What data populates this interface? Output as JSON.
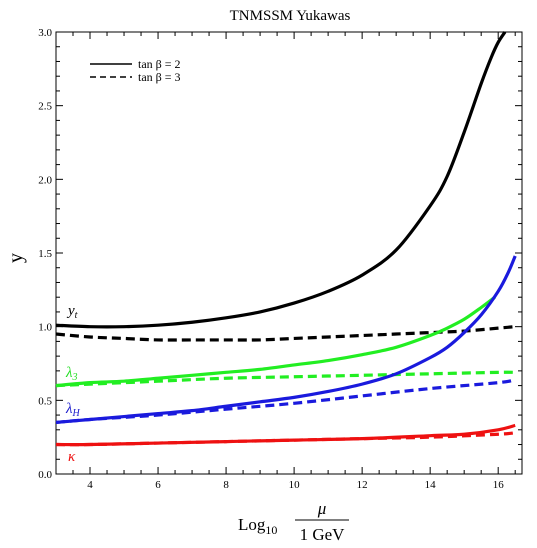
{
  "chart_data": {
    "type": "line",
    "title": "TNMSSM Yukawas",
    "ylabel": "y",
    "xlabel": {
      "prefix": "Log",
      "prefix_sub": "10",
      "numerator": "μ",
      "denominator": "1 GeV"
    },
    "xlim": [
      3,
      16.7
    ],
    "ylim": [
      0,
      3.0
    ],
    "xticks": [
      "4",
      "6",
      "8",
      "10",
      "12",
      "14",
      "16"
    ],
    "yticks": [
      "0.0",
      "0.5",
      "1.0",
      "1.5",
      "2.0",
      "2.5",
      "3.0"
    ],
    "xtick_values": [
      4,
      6,
      8,
      10,
      12,
      14,
      16
    ],
    "ytick_values": [
      0.0,
      0.5,
      1.0,
      1.5,
      2.0,
      2.5,
      3.0
    ],
    "legend": {
      "placement": "top-left",
      "entries": [
        {
          "label": "tan β = 2",
          "style": "solid"
        },
        {
          "label": "tan β = 3",
          "style": "dashed"
        }
      ]
    },
    "curve_labels": {
      "yt": {
        "main": "y",
        "sub": "t",
        "color": "#000000"
      },
      "lambda3": {
        "main": "λ",
        "sub": "3",
        "color": "#22dd22"
      },
      "lambdaH": {
        "main": "λ",
        "sub": "H",
        "color": "#1a1acc"
      },
      "kappa": {
        "main": "κ",
        "sub": "",
        "color": "#ee1111"
      }
    },
    "series": [
      {
        "key": "yt_solid",
        "color": "#000000",
        "style": "solid",
        "x": [
          3,
          4,
          5,
          6,
          7,
          8,
          9,
          10,
          11,
          12,
          13,
          14,
          14.5,
          15,
          15.5,
          15.8,
          16.0,
          16.2
        ],
        "y": [
          1.01,
          1.0,
          1.0,
          1.01,
          1.03,
          1.06,
          1.1,
          1.16,
          1.24,
          1.35,
          1.52,
          1.82,
          2.02,
          2.32,
          2.65,
          2.83,
          2.93,
          3.0
        ]
      },
      {
        "key": "yt_dashed",
        "color": "#000000",
        "style": "dashed",
        "x": [
          3,
          4,
          5,
          6,
          7,
          8,
          9,
          10,
          11,
          12,
          13,
          14,
          15,
          16,
          16.5
        ],
        "y": [
          0.95,
          0.93,
          0.92,
          0.91,
          0.91,
          0.91,
          0.91,
          0.92,
          0.93,
          0.94,
          0.95,
          0.96,
          0.97,
          0.99,
          1.0
        ]
      },
      {
        "key": "lambda3_solid",
        "color": "#22ee22",
        "style": "solid",
        "x": [
          3,
          4,
          5,
          6,
          7,
          8,
          9,
          10,
          11,
          12,
          13,
          14,
          14.5,
          15,
          15.5,
          15.9
        ],
        "y": [
          0.6,
          0.62,
          0.63,
          0.65,
          0.67,
          0.69,
          0.71,
          0.74,
          0.77,
          0.81,
          0.86,
          0.94,
          0.99,
          1.05,
          1.13,
          1.2
        ]
      },
      {
        "key": "lambda3_dashed",
        "color": "#22ee22",
        "style": "dashed",
        "x": [
          3,
          4,
          6,
          8,
          10,
          12,
          14,
          16,
          16.5
        ],
        "y": [
          0.6,
          0.61,
          0.63,
          0.65,
          0.66,
          0.67,
          0.68,
          0.69,
          0.69
        ]
      },
      {
        "key": "lambdaH_solid",
        "color": "#1a1add",
        "style": "solid",
        "x": [
          3,
          4,
          5,
          6,
          7,
          8,
          9,
          10,
          11,
          12,
          13,
          14,
          14.5,
          15,
          15.5,
          16.0,
          16.3,
          16.5
        ],
        "y": [
          0.35,
          0.37,
          0.39,
          0.41,
          0.43,
          0.46,
          0.49,
          0.52,
          0.56,
          0.61,
          0.68,
          0.79,
          0.86,
          0.96,
          1.08,
          1.24,
          1.37,
          1.48
        ]
      },
      {
        "key": "lambdaH_dashed",
        "color": "#1a1add",
        "style": "dashed",
        "x": [
          3,
          4,
          6,
          8,
          10,
          12,
          14,
          16,
          16.5
        ],
        "y": [
          0.35,
          0.37,
          0.4,
          0.44,
          0.48,
          0.53,
          0.58,
          0.62,
          0.64
        ]
      },
      {
        "key": "kappa_solid",
        "color": "#ee1111",
        "style": "solid",
        "x": [
          3,
          4,
          6,
          8,
          10,
          12,
          14,
          15,
          16,
          16.5
        ],
        "y": [
          0.2,
          0.2,
          0.21,
          0.22,
          0.23,
          0.24,
          0.26,
          0.27,
          0.3,
          0.33
        ]
      },
      {
        "key": "kappa_dashed",
        "color": "#ee1111",
        "style": "dashed",
        "x": [
          3,
          4,
          6,
          8,
          10,
          12,
          14,
          16,
          16.5
        ],
        "y": [
          0.2,
          0.2,
          0.21,
          0.22,
          0.23,
          0.24,
          0.25,
          0.27,
          0.28
        ]
      }
    ]
  }
}
